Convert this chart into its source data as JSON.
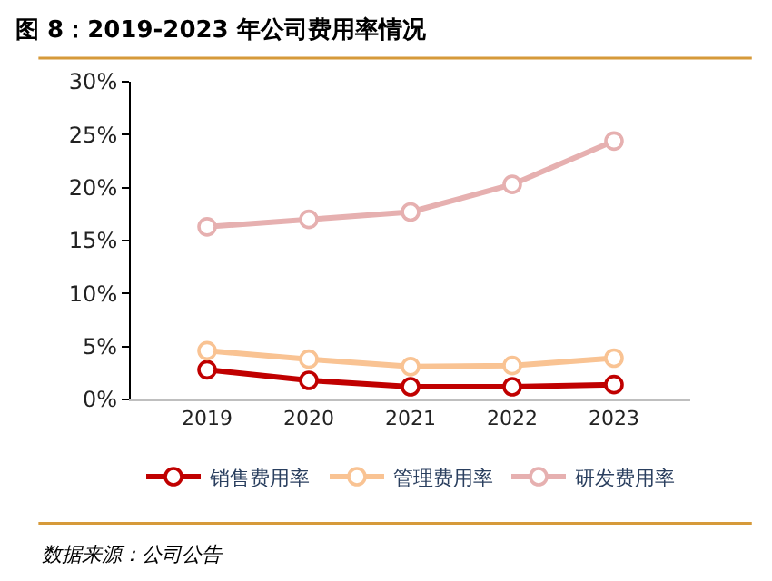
{
  "chart_data": {
    "type": "line",
    "title": "图 8：2019-2023 年公司费用率情况",
    "categories": [
      "2019",
      "2020",
      "2021",
      "2022",
      "2023"
    ],
    "series": [
      {
        "name": "销售费用率",
        "color": "#c00000",
        "values": [
          2.8,
          1.8,
          1.2,
          1.2,
          1.4
        ]
      },
      {
        "name": "管理费用率",
        "color": "#f9c393",
        "values": [
          4.6,
          3.8,
          3.1,
          3.2,
          3.9
        ]
      },
      {
        "name": "研发费用率",
        "color": "#e6b0b0",
        "values": [
          16.3,
          17.0,
          17.7,
          20.3,
          24.4
        ]
      }
    ],
    "ylim": [
      0,
      30
    ],
    "yticks": [
      {
        "value": 0,
        "label": "0%"
      },
      {
        "value": 5,
        "label": "5%"
      },
      {
        "value": 10,
        "label": "10%"
      },
      {
        "value": 15,
        "label": "15%"
      },
      {
        "value": 20,
        "label": "20%"
      },
      {
        "value": 25,
        "label": "25%"
      },
      {
        "value": 30,
        "label": "30%"
      }
    ],
    "legend": "bottom",
    "marker": "circle",
    "line_style": "solid",
    "annotations": [
      "数据来源：公司公告"
    ]
  }
}
